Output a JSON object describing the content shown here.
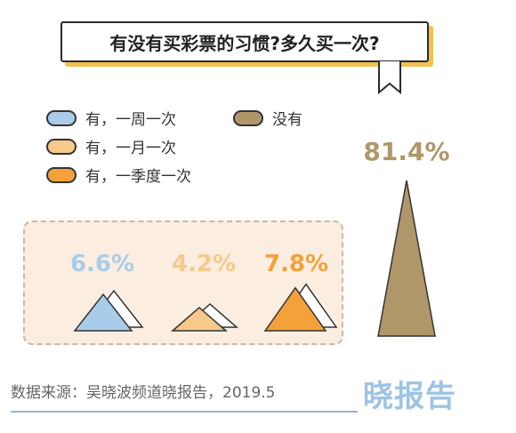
{
  "title": "有没有买彩票的习惯?多久买一次?",
  "legend": [
    {
      "label": "有，一周一次",
      "color": "#a9cde8"
    },
    {
      "label": "有，一月一次",
      "color": "#f7c98a"
    },
    {
      "label": "有，一季度一次",
      "color": "#f5a13a"
    },
    {
      "label": "没有",
      "color": "#b0976a"
    }
  ],
  "chart_data": {
    "type": "bar",
    "title": "有没有买彩票的习惯?多久买一次?",
    "categories": [
      "有，一周一次",
      "有，一月一次",
      "有，一季度一次",
      "没有"
    ],
    "values": [
      6.6,
      4.2,
      7.8,
      81.4
    ],
    "value_labels": [
      "6.6%",
      "4.2%",
      "7.8%",
      "81.4%"
    ],
    "unit": "%",
    "colors": [
      "#a9cde8",
      "#f7c98a",
      "#f5a13a",
      "#b0976a"
    ],
    "label_colors": [
      "#a9cde8",
      "#f7c98a",
      "#f5a13a",
      "#b0976a"
    ],
    "mark_shape": "triangle"
  },
  "footer": {
    "source": "数据来源：吴晓波频道晓报告，2019.5",
    "brand": "晓报告"
  }
}
